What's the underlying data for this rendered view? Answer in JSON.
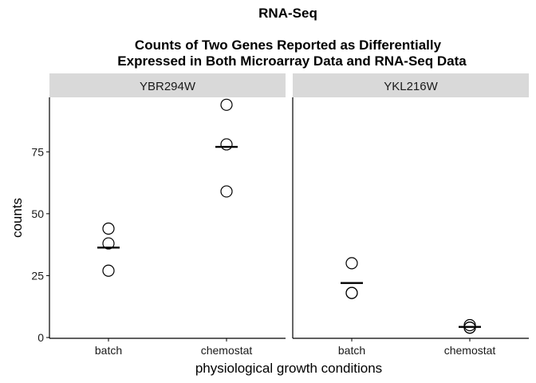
{
  "chart_data": {
    "type": "scatter",
    "title_lines": [
      "RNA-Seq",
      "",
      "Counts of Two Genes Reported as Differentially",
      "Expressed in Both Microarray Data and RNA-Seq Data"
    ],
    "xlabel": "physiological growth conditions",
    "ylabel": "counts",
    "categories": [
      "batch",
      "chemostat"
    ],
    "ylim": [
      0,
      97
    ],
    "yticks": [
      0,
      25,
      50,
      75
    ],
    "grid": false,
    "panels": [
      {
        "name": "YBR294W",
        "points": [
          {
            "x": "batch",
            "y": 44
          },
          {
            "x": "batch",
            "y": 38
          },
          {
            "x": "batch",
            "y": 27
          },
          {
            "x": "chemostat",
            "y": 94
          },
          {
            "x": "chemostat",
            "y": 78
          },
          {
            "x": "chemostat",
            "y": 59
          }
        ],
        "means": [
          {
            "x": "batch",
            "y": 36.3
          },
          {
            "x": "chemostat",
            "y": 77
          }
        ]
      },
      {
        "name": "YKL216W",
        "points": [
          {
            "x": "batch",
            "y": 30
          },
          {
            "x": "batch",
            "y": 18
          },
          {
            "x": "batch",
            "y": 18
          },
          {
            "x": "chemostat",
            "y": 5
          },
          {
            "x": "chemostat",
            "y": 4
          },
          {
            "x": "chemostat",
            "y": 4
          }
        ],
        "means": [
          {
            "x": "batch",
            "y": 22
          },
          {
            "x": "chemostat",
            "y": 4.3
          }
        ]
      }
    ],
    "colors": {
      "strip_background": "#d9d9d9",
      "point_stroke": "#000000",
      "mean_line": "#000000",
      "axis": "#000000"
    }
  }
}
